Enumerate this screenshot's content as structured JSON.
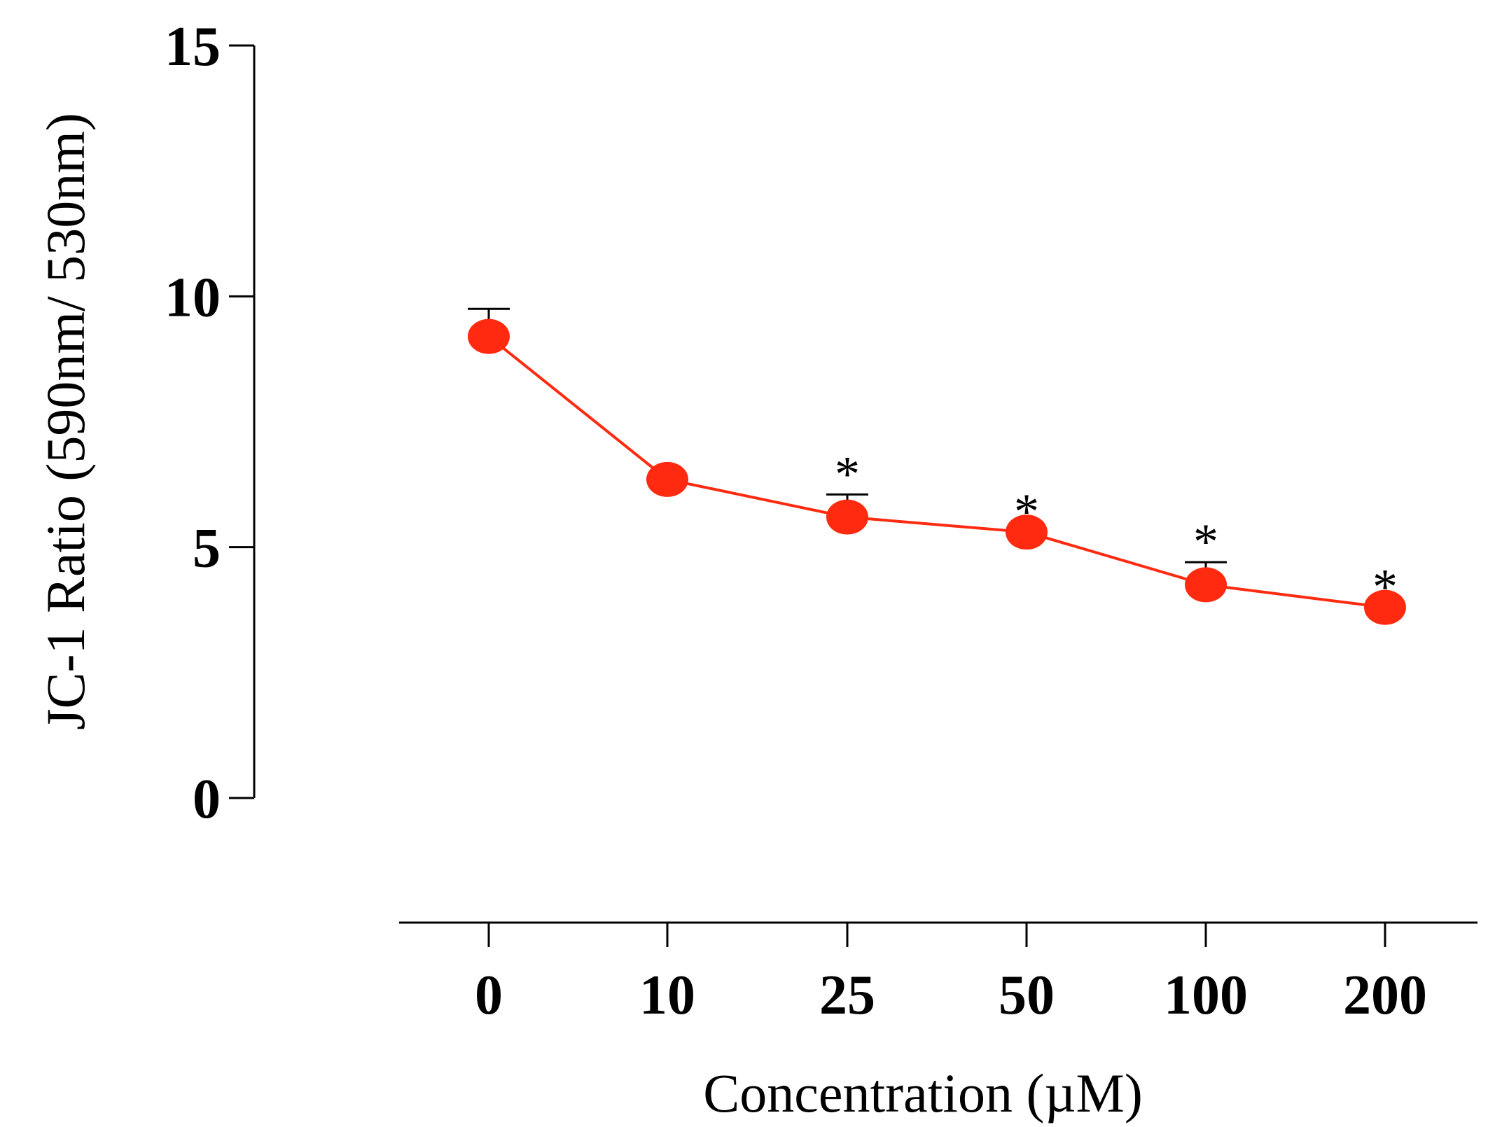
{
  "chart_data": {
    "type": "line",
    "title": "",
    "xlabel": "Concentration (µM)",
    "ylabel": "JC-1 Ratio (590nm/ 530nm)",
    "categories": [
      "0",
      "10",
      "25",
      "50",
      "100",
      "200"
    ],
    "ylim": [
      0,
      15
    ],
    "yticks": [
      0,
      5,
      10,
      15
    ],
    "grid": false,
    "legend": "none",
    "series": [
      {
        "name": "JC-1 Ratio",
        "color": "#ff2a10",
        "values": [
          9.2,
          6.35,
          5.6,
          5.3,
          4.25,
          3.8
        ],
        "error_upper": [
          0.55,
          null,
          0.45,
          null,
          0.45,
          null
        ],
        "significance": [
          "",
          "",
          "*",
          "*",
          "*",
          "*"
        ]
      }
    ]
  }
}
